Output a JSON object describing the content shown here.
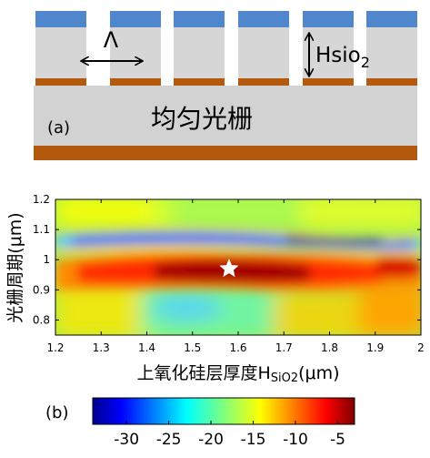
{
  "schematic": {
    "period_symbol": "Λ",
    "height_label": "Hsio",
    "height_subscript": "2",
    "grating_label": "均匀光栅",
    "panel_label": "(a)",
    "colors": {
      "cap": "#4f86cc",
      "pillar": "#d6d6d6",
      "metal": "#b45a0e",
      "substrate": "#d2d2d2"
    }
  },
  "chart_data": {
    "type": "heatmap",
    "xlabel_prefix": "上氧化硅层厚度H",
    "xlabel_sub": "SiO2",
    "xlabel_suffix": "(μm)",
    "ylabel": "光栅周期(μm)",
    "x_ticks": [
      "1.2",
      "1.3",
      "1.4",
      "1.5",
      "1.6",
      "1.7",
      "1.8",
      "1.9",
      "2"
    ],
    "y_ticks": [
      "1.2",
      "1.1",
      "1",
      "0.9",
      "0.8"
    ],
    "xlim": [
      1.2,
      2.0
    ],
    "ylim": [
      0.75,
      1.2
    ],
    "marker": {
      "shape": "star",
      "x": 1.58,
      "y": 0.97
    },
    "colorbar": {
      "ticks": [
        "-30",
        "-25",
        "-20",
        "-15",
        "-10",
        "-5"
      ],
      "range": [
        -34,
        -3
      ],
      "colormap": "jet"
    },
    "panel_label": "(b)"
  }
}
